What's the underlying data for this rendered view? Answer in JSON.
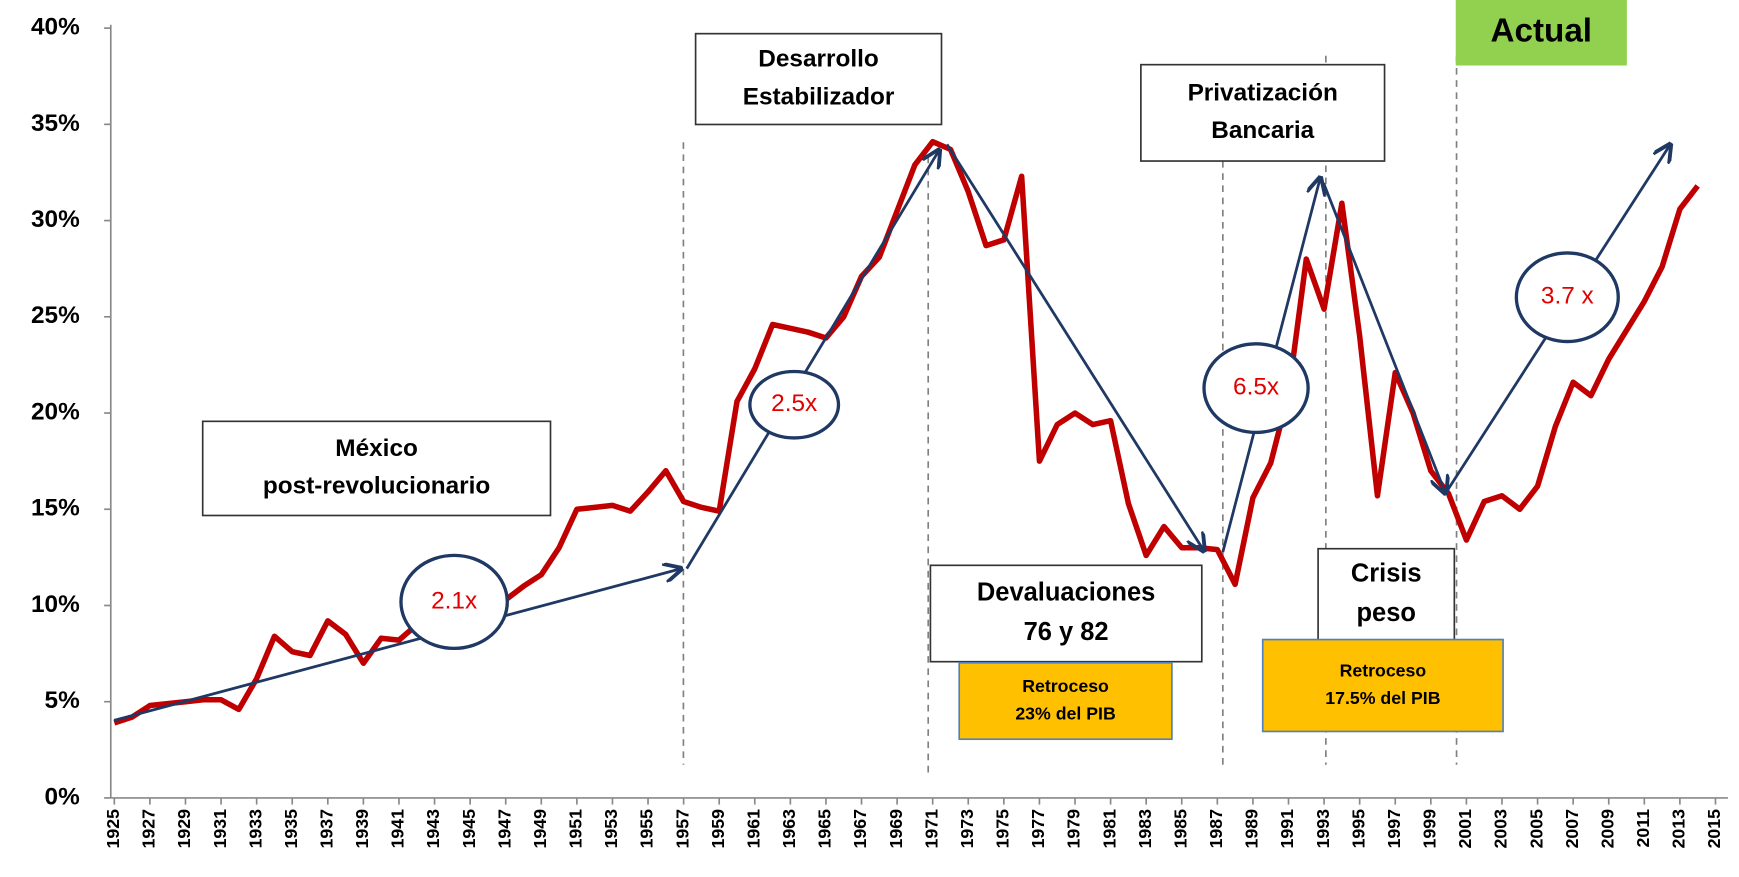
{
  "chart_data": {
    "type": "line",
    "x": [
      1925,
      1926,
      1927,
      1928,
      1929,
      1930,
      1931,
      1932,
      1933,
      1934,
      1935,
      1936,
      1937,
      1938,
      1939,
      1940,
      1941,
      1942,
      1943,
      1944,
      1945,
      1946,
      1947,
      1948,
      1949,
      1950,
      1951,
      1952,
      1953,
      1954,
      1955,
      1956,
      1957,
      1958,
      1959,
      1960,
      1961,
      1962,
      1963,
      1964,
      1965,
      1966,
      1967,
      1968,
      1969,
      1970,
      1971,
      1972,
      1973,
      1974,
      1975,
      1976,
      1977,
      1978,
      1979,
      1980,
      1981,
      1982,
      1983,
      1984,
      1985,
      1986,
      1987,
      1988,
      1989,
      1990,
      1991,
      1992,
      1993,
      1994,
      1995,
      1996,
      1997,
      1998,
      1999,
      2000,
      2001,
      2002,
      2003,
      2004,
      2005,
      2006,
      2007,
      2008,
      2009,
      2010,
      2011,
      2012,
      2013,
      2014
    ],
    "series": [
      {
        "color": "#c00000",
        "values": [
          3.9,
          4.2,
          4.8,
          4.9,
          5.0,
          5.1,
          5.1,
          4.6,
          6.2,
          8.4,
          7.6,
          7.4,
          9.2,
          8.5,
          7.0,
          8.3,
          8.2,
          9.0,
          9.5,
          10.0,
          10.5,
          10.0,
          10.3,
          11.0,
          11.6,
          13.0,
          15.0,
          15.1,
          15.2,
          14.9,
          15.9,
          17.0,
          15.4,
          15.1,
          14.9,
          20.6,
          22.3,
          24.6,
          24.4,
          24.2,
          23.9,
          25.0,
          27.1,
          28.1,
          30.5,
          32.9,
          34.1,
          33.7,
          31.5,
          28.7,
          29.0,
          32.3,
          17.5,
          19.4,
          20.0,
          19.4,
          19.6,
          15.3,
          12.6,
          14.1,
          13.0,
          13.0,
          12.9,
          11.1,
          15.6,
          17.4,
          21.0,
          28.0,
          25.4,
          30.9,
          24.0,
          15.7,
          22.1,
          20.0,
          17.0,
          15.8,
          13.4,
          15.4,
          15.7,
          15.0,
          16.2,
          19.3,
          21.6,
          20.9,
          22.8,
          24.3,
          25.8,
          27.6,
          30.6,
          31.8
        ]
      }
    ],
    "xlim": [
      1924.8,
      2015.7
    ],
    "xticks": [
      1925,
      1927,
      1929,
      1931,
      1933,
      1935,
      1937,
      1939,
      1941,
      1943,
      1945,
      1947,
      1949,
      1951,
      1953,
      1955,
      1957,
      1959,
      1961,
      1963,
      1965,
      1967,
      1969,
      1971,
      1973,
      1975,
      1977,
      1979,
      1981,
      1983,
      1985,
      1987,
      1989,
      1991,
      1993,
      1995,
      1997,
      1999,
      2001,
      2003,
      2005,
      2007,
      2009,
      2011,
      2013,
      2015
    ],
    "ylim": [
      0,
      40
    ],
    "yticks": [
      {
        "value": 0,
        "label": "0%"
      },
      {
        "value": 5,
        "label": "5%"
      },
      {
        "value": 10,
        "label": "10%"
      },
      {
        "value": 15,
        "label": "15%"
      },
      {
        "value": 20,
        "label": "20%"
      },
      {
        "value": 25,
        "label": "25%"
      },
      {
        "value": 30,
        "label": "30%"
      },
      {
        "value": 35,
        "label": "35%"
      },
      {
        "value": 40,
        "label": "40%"
      }
    ],
    "annotations": [
      {
        "lines": [
          "México",
          "post-revolucionario"
        ]
      },
      {
        "lines": [
          "Desarrollo",
          "Estabilizador"
        ]
      },
      {
        "lines": [
          "Privatización",
          "Bancaria"
        ]
      },
      {
        "lines": [
          "Actual"
        ]
      },
      {
        "lines": [
          "Devaluaciones",
          "76 y 82"
        ]
      },
      {
        "lines": [
          "Crisis",
          "peso"
        ]
      },
      {
        "lines": [
          "Retroceso",
          "23% del PIB"
        ]
      },
      {
        "lines": [
          "Retroceso",
          "17.5% del PIB"
        ]
      },
      {
        "lines": [
          "2.1x"
        ]
      },
      {
        "lines": [
          "2.5x"
        ]
      },
      {
        "lines": [
          "6.5x"
        ]
      },
      {
        "lines": [
          "3.7 x"
        ]
      }
    ]
  }
}
